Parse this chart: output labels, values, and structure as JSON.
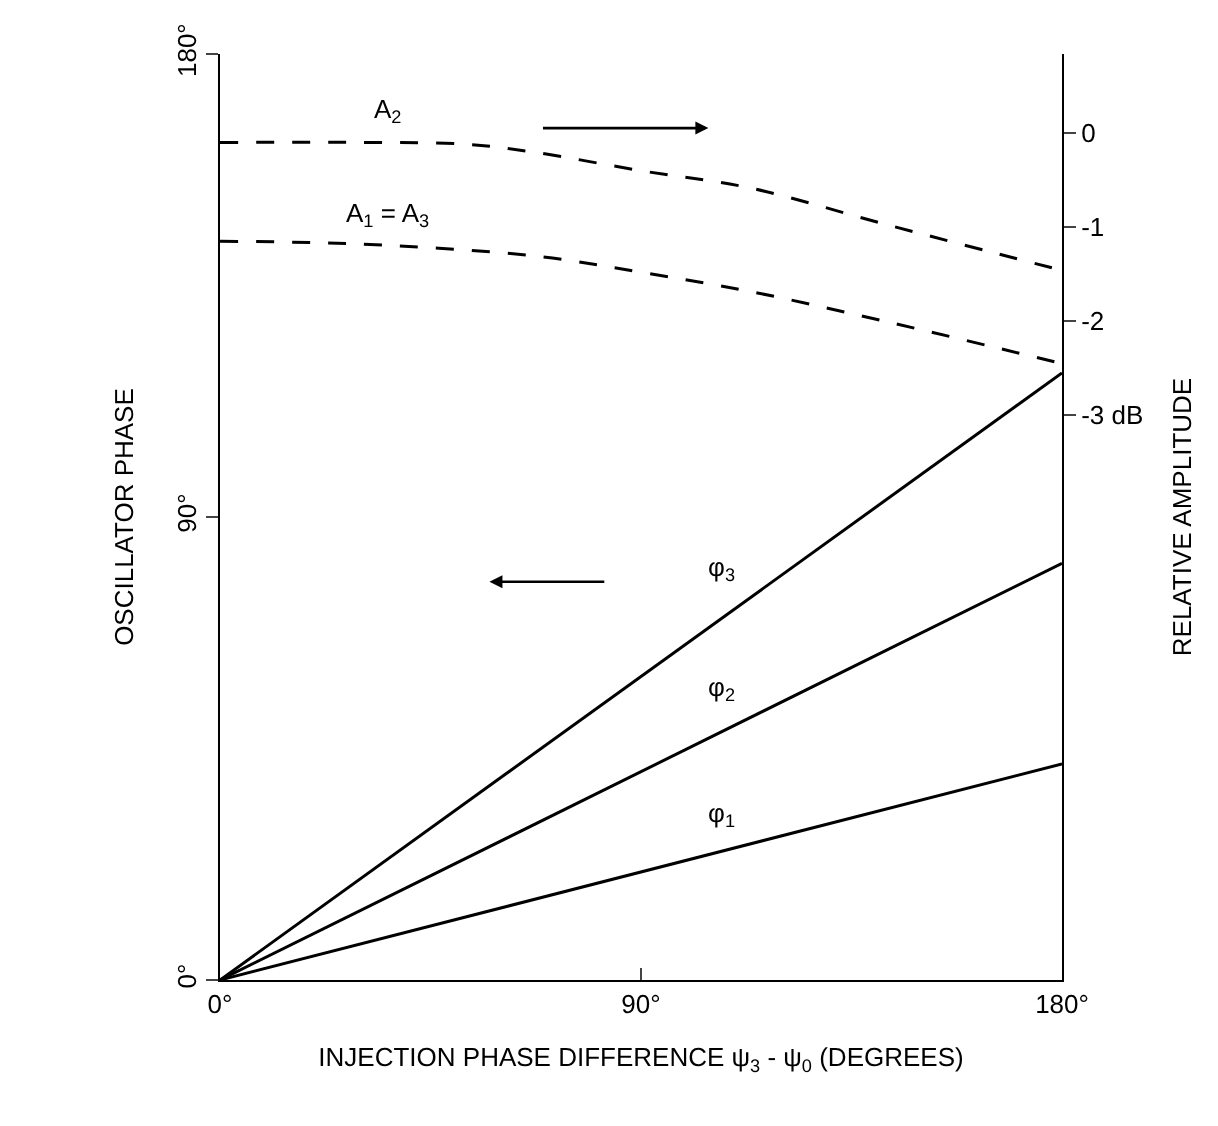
{
  "chart_data": {
    "type": "line",
    "xlabel": "INJECTION PHASE DIFFERENCE ψ$_{3}$ - ψ$_{0}$ (DEGREES)",
    "ylabel": "OSCILLATOR PHASE",
    "y2label": "RELATIVE AMPLITUDE",
    "xlim": [
      0,
      180
    ],
    "xticks": [
      {
        "value": 0,
        "label": "0°"
      },
      {
        "value": 90,
        "label": "90°"
      },
      {
        "value": 180,
        "label": "180°"
      }
    ],
    "ylim": [
      0,
      180
    ],
    "yticks": [
      {
        "value": 0,
        "label": "0°"
      },
      {
        "value": 90,
        "label": "90°"
      },
      {
        "value": 180,
        "label": "180°"
      }
    ],
    "y2lim": [
      -9.0,
      0.84
    ],
    "y2ticks": [
      0,
      -1,
      -2,
      {
        "value": -3,
        "label": "-3 dB"
      }
    ],
    "legend": false,
    "marker": "none",
    "series": [
      {
        "name": "φ$_{1}$",
        "x": [
          0,
          180
        ],
        "values": [
          0,
          42
        ],
        "color": "#000000",
        "line_style": "solid"
      },
      {
        "name": "φ$_{2}$",
        "x": [
          0,
          180
        ],
        "values": [
          0,
          81
        ],
        "color": "#000000",
        "line_style": "solid"
      },
      {
        "name": "φ$_{3}$",
        "x": [
          0,
          180
        ],
        "values": [
          0,
          118
        ],
        "color": "#000000",
        "line_style": "solid"
      },
      {
        "name": "A$_{2}$",
        "x": [
          0,
          30,
          53,
          68,
          90,
          113,
          143,
          180
        ],
        "values": [
          -0.1,
          -0.1,
          -0.12,
          -0.21,
          -0.4,
          -0.58,
          -0.98,
          -1.46
        ],
        "color": "#000000",
        "axis": "y2",
        "line_style": "dashed"
      },
      {
        "name": "A$_{1}$ = A$_{3}$",
        "x": [
          0,
          30,
          68,
          90,
          113,
          143,
          180
        ],
        "values": [
          -1.15,
          -1.18,
          -1.31,
          -1.48,
          -1.68,
          -2.01,
          -2.45
        ],
        "color": "#000000",
        "axis": "y2",
        "line_style": "dashed"
      }
    ]
  }
}
